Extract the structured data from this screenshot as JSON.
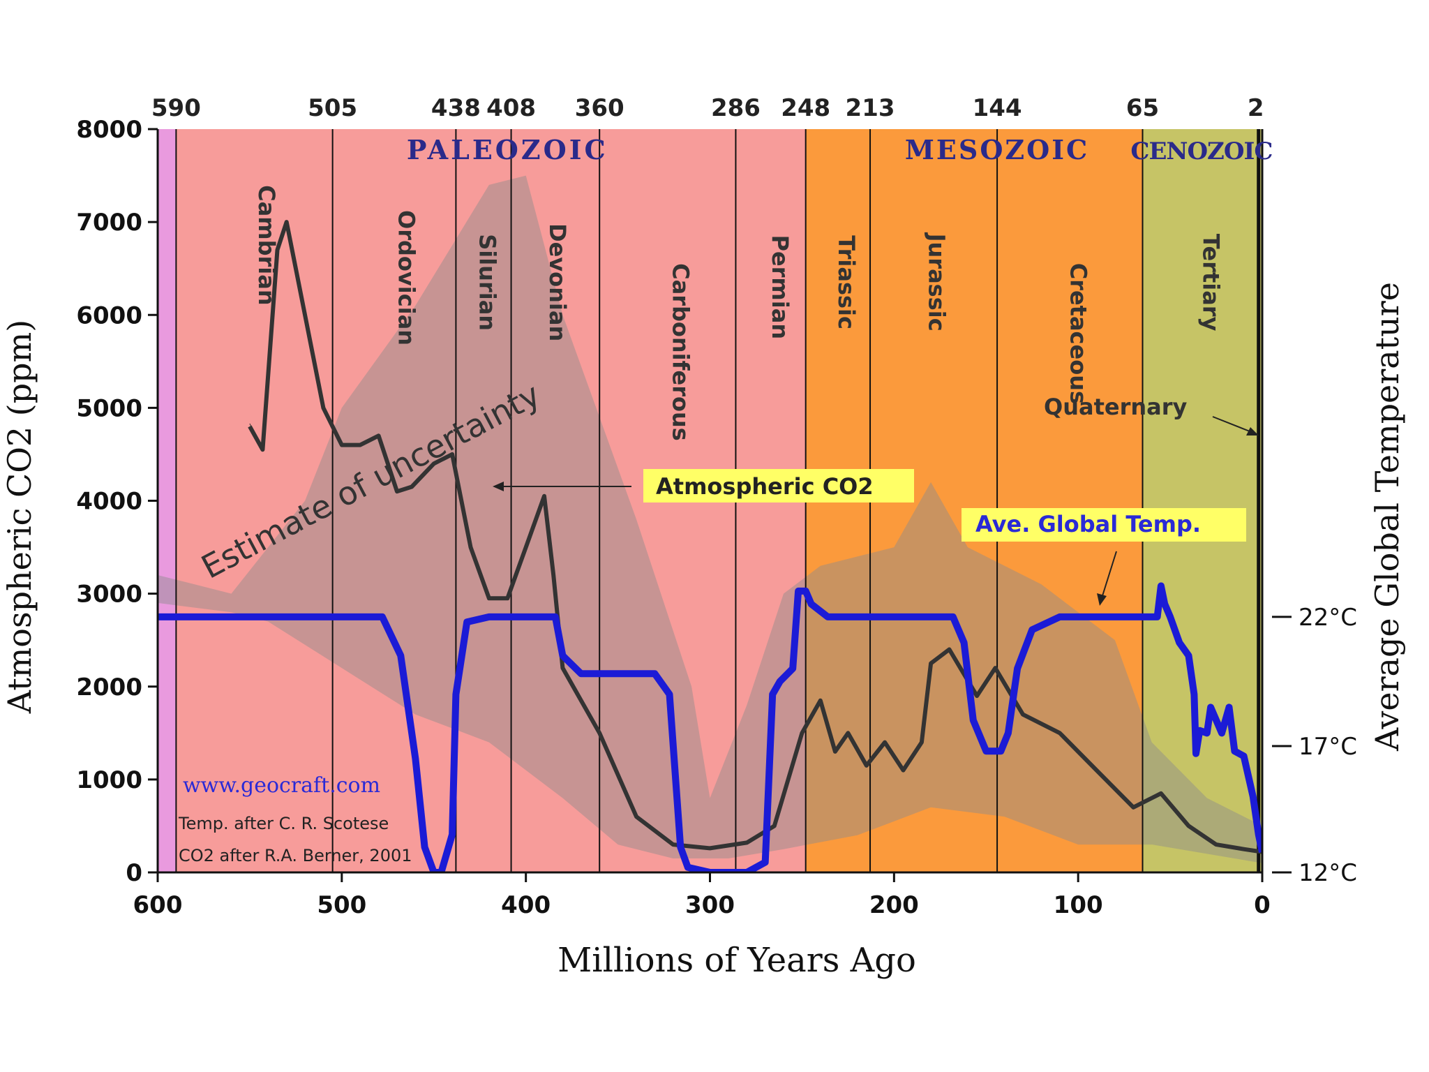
{
  "chart_data": {
    "type": "line",
    "xlabel": "Millions of Years Ago",
    "ylabel": "Atmospheric CO2 (ppm)",
    "y2label": "Average Global Temperature",
    "xlim": [
      600,
      0
    ],
    "ylim": [
      0,
      8000
    ],
    "x_ticks": [
      600,
      500,
      400,
      300,
      200,
      100,
      0
    ],
    "y_ticks": [
      0,
      1000,
      2000,
      3000,
      4000,
      5000,
      6000,
      7000,
      8000
    ],
    "y2_ticks": [
      {
        "label": "22°C",
        "value": 22,
        "co2_equiv": 2750
      },
      {
        "label": "17°C",
        "value": 17,
        "co2_equiv": 1360
      },
      {
        "label": "12°C",
        "value": 12,
        "co2_equiv": 0
      }
    ],
    "boundaries": [
      590,
      505,
      438,
      408,
      360,
      286,
      248,
      213,
      144,
      65,
      2
    ],
    "eras": [
      {
        "name": "PALEOZOIC",
        "start": 590,
        "end": 248,
        "color": "#f79c9a"
      },
      {
        "name": "MESOZOIC",
        "start": 248,
        "end": 65,
        "color": "#fb9a3c"
      },
      {
        "name": "CENOZOIC",
        "start": 65,
        "end": 0,
        "color": "#c6c466"
      }
    ],
    "pre_cambrian_color": "#e99ade",
    "periods": [
      {
        "name": "Cambrian",
        "mid": 545,
        "y": 6750
      },
      {
        "name": "Ordovician",
        "mid": 469,
        "y": 6400
      },
      {
        "name": "Silurian",
        "mid": 425,
        "y": 6350
      },
      {
        "name": "Devonian",
        "mid": 387,
        "y": 6350
      },
      {
        "name": "Carboniferous",
        "mid": 320,
        "y": 5600
      },
      {
        "name": "Permian",
        "mid": 266,
        "y": 6300
      },
      {
        "name": "Triassic",
        "mid": 230,
        "y": 6350
      },
      {
        "name": "Jurassic",
        "mid": 181,
        "y": 6350
      },
      {
        "name": "Cretaceous",
        "mid": 104,
        "y": 5800
      },
      {
        "name": "Tertiary",
        "mid": 32,
        "y": 6350
      }
    ],
    "uncertainty_band": {
      "upper": [
        [
          600,
          3200
        ],
        [
          580,
          3100
        ],
        [
          560,
          3000
        ],
        [
          520,
          4000
        ],
        [
          500,
          5000
        ],
        [
          460,
          6100
        ],
        [
          420,
          7400
        ],
        [
          400,
          7500
        ],
        [
          380,
          6000
        ],
        [
          340,
          3800
        ],
        [
          310,
          2000
        ],
        [
          300,
          800
        ],
        [
          280,
          1800
        ],
        [
          260,
          3000
        ],
        [
          240,
          3300
        ],
        [
          200,
          3500
        ],
        [
          180,
          4200
        ],
        [
          160,
          3500
        ],
        [
          120,
          3100
        ],
        [
          80,
          2500
        ],
        [
          60,
          1400
        ],
        [
          30,
          800
        ],
        [
          0,
          500
        ]
      ],
      "lower": [
        [
          0,
          100
        ],
        [
          30,
          200
        ],
        [
          60,
          300
        ],
        [
          100,
          300
        ],
        [
          140,
          600
        ],
        [
          180,
          700
        ],
        [
          220,
          400
        ],
        [
          260,
          250
        ],
        [
          290,
          150
        ],
        [
          320,
          150
        ],
        [
          350,
          300
        ],
        [
          380,
          800
        ],
        [
          420,
          1400
        ],
        [
          460,
          1700
        ],
        [
          500,
          2200
        ],
        [
          540,
          2700
        ],
        [
          560,
          2800
        ],
        [
          580,
          2850
        ],
        [
          600,
          2900
        ]
      ]
    },
    "series": [
      {
        "name": "Atmospheric CO2",
        "color": "#333333",
        "points": [
          [
            550,
            4800
          ],
          [
            543,
            4550
          ],
          [
            535,
            6700
          ],
          [
            530,
            7000
          ],
          [
            525,
            6500
          ],
          [
            510,
            5000
          ],
          [
            500,
            4600
          ],
          [
            490,
            4600
          ],
          [
            480,
            4700
          ],
          [
            470,
            4100
          ],
          [
            462,
            4150
          ],
          [
            450,
            4400
          ],
          [
            440,
            4500
          ],
          [
            430,
            3500
          ],
          [
            420,
            2950
          ],
          [
            410,
            2950
          ],
          [
            400,
            3500
          ],
          [
            390,
            4050
          ],
          [
            385,
            3200
          ],
          [
            380,
            2200
          ],
          [
            360,
            1500
          ],
          [
            340,
            600
          ],
          [
            320,
            300
          ],
          [
            300,
            260
          ],
          [
            280,
            320
          ],
          [
            265,
            500
          ],
          [
            250,
            1500
          ],
          [
            240,
            1850
          ],
          [
            232,
            1300
          ],
          [
            225,
            1500
          ],
          [
            215,
            1150
          ],
          [
            205,
            1400
          ],
          [
            195,
            1100
          ],
          [
            185,
            1400
          ],
          [
            180,
            2250
          ],
          [
            170,
            2400
          ],
          [
            155,
            1900
          ],
          [
            145,
            2200
          ],
          [
            130,
            1700
          ],
          [
            110,
            1500
          ],
          [
            90,
            1100
          ],
          [
            70,
            700
          ],
          [
            55,
            850
          ],
          [
            40,
            500
          ],
          [
            25,
            300
          ],
          [
            10,
            250
          ],
          [
            0,
            220
          ]
        ]
      },
      {
        "name": "Ave. Global Temp.",
        "color": "#1b1bd6",
        "unit": "°C",
        "points": [
          [
            600,
            22
          ],
          [
            580,
            22
          ],
          [
            540,
            22
          ],
          [
            500,
            22
          ],
          [
            478,
            22
          ],
          [
            468,
            20.5
          ],
          [
            460,
            16.5
          ],
          [
            455,
            13
          ],
          [
            450,
            12
          ],
          [
            446,
            12
          ],
          [
            440,
            13.5
          ],
          [
            438,
            19
          ],
          [
            432,
            21.8
          ],
          [
            420,
            22
          ],
          [
            410,
            22
          ],
          [
            400,
            22
          ],
          [
            384,
            22
          ],
          [
            380,
            20.5
          ],
          [
            370,
            19.8
          ],
          [
            360,
            19.8
          ],
          [
            330,
            19.8
          ],
          [
            322,
            19
          ],
          [
            316,
            13
          ],
          [
            312,
            12.2
          ],
          [
            300,
            12.0
          ],
          [
            280,
            12.0
          ],
          [
            270,
            12.4
          ],
          [
            266,
            19
          ],
          [
            262,
            19.5
          ],
          [
            255,
            20
          ],
          [
            252,
            23
          ],
          [
            248,
            23
          ],
          [
            245,
            22.5
          ],
          [
            236,
            22
          ],
          [
            200,
            22
          ],
          [
            168,
            22
          ],
          [
            162,
            21
          ],
          [
            157,
            18
          ],
          [
            150,
            16.8
          ],
          [
            142,
            16.8
          ],
          [
            138,
            17.5
          ],
          [
            133,
            20
          ],
          [
            125,
            21.5
          ],
          [
            110,
            22
          ],
          [
            90,
            22
          ],
          [
            70,
            22
          ],
          [
            63,
            22
          ],
          [
            57,
            22
          ],
          [
            55,
            23.2
          ],
          [
            53,
            22.5
          ],
          [
            50,
            22
          ],
          [
            45,
            21
          ],
          [
            40,
            20.5
          ],
          [
            37,
            19
          ],
          [
            36,
            16.7
          ],
          [
            34,
            17.6
          ],
          [
            30,
            17.5
          ],
          [
            28,
            18.5
          ],
          [
            22,
            17.5
          ],
          [
            18,
            18.5
          ],
          [
            15,
            16.8
          ],
          [
            10,
            16.6
          ],
          [
            5,
            15
          ],
          [
            2,
            13.5
          ],
          [
            0,
            12.8
          ]
        ]
      }
    ],
    "annotations": [
      {
        "id": "uncertainty",
        "text": "Estimate of uncertainty"
      },
      {
        "id": "co2",
        "text": "Atmospheric CO2",
        "color": "#ffff66"
      },
      {
        "id": "temp",
        "text": "Ave. Global Temp.",
        "color": "#ffff66"
      },
      {
        "id": "quaternary",
        "text": "Quaternary"
      }
    ],
    "credits": {
      "site": "www.geocraft.com",
      "temp": "Temp. after C. R. Scotese",
      "co2": "CO2 after R.A. Berner, 2001"
    }
  }
}
